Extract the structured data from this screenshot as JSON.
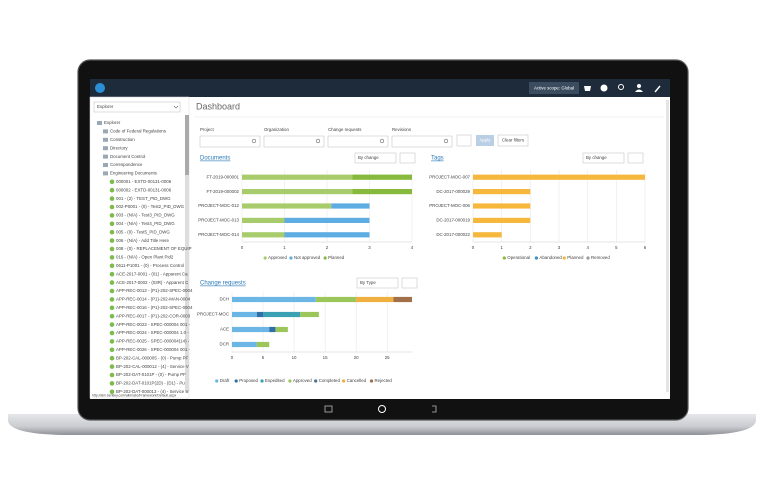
{
  "topbar": {
    "scope": "Active scope: Global"
  },
  "sidebar": {
    "dropdown": "Explorer",
    "root": "Explorer",
    "folders": [
      "Code of Federal Regulations",
      "Construction",
      "Directory",
      "Document Control",
      "Correspondence",
      "Engineering Documents"
    ],
    "documents": [
      "000001 - EXTD-00131-0006",
      "000002 - EXTD-00131-0006",
      "001 - (2) - TEST_PID_DWG",
      "002-P0001 - (0) - Test2_PID_DWG",
      "003 - (N/A) - Test3_PID_DWG",
      "004 - (N/A) - Test4_PID_DWG",
      "005 - (0) - Test5_PID_DWG",
      "006 - (N/A) - Add Title Here",
      "008 - (0) - REPLACEMENT OF EQUIP",
      "016 - (N/A) - Open Plant Pid2",
      "0611-P1001 - (0) - Process Control",
      "ACE-2017-0001 - (01) - Apparent Ca",
      "ACE-2017-0002 - (03R) - Apparent C",
      "APP-REC-0013 - (P1)-202-SPEC-0004",
      "APP-REC-0014 - (P1)-202-MAN-0004",
      "APP-REC-0016 - (P1)-202-SPEC-0004",
      "APP-REC-0017 - (P1)-202-COR-0003",
      "APP-REC-0023 - SPEC-000004 001 -",
      "APP-REC-0024 - SPEC-000004 1.0 -",
      "APP-REC-0025 - SPEC-000004(14) -",
      "APP-REC-0026 - SPEC-000004 001 -",
      "BP-202-CAL-000005 - (0) - Pump PF",
      "BP-202-CAL-000012 - (4) - Service V",
      "BP-202-DAT-0101P - (0) - Pump PF",
      "BP-202-DAT-0101P(2D) - (D1) - Pu",
      "BP-202-DAT-000013 - (4) - Service V"
    ],
    "status": "http://alm.bentley.com/alim/abc/Framework/Default.aspx"
  },
  "main": {
    "title": "Dashboard"
  },
  "filters": {
    "labels": [
      "Project",
      "Organization",
      "Change requests",
      "Revisions"
    ],
    "apply": "Apply",
    "clear": "Clear filters"
  },
  "chart_data": [
    {
      "type": "bar",
      "orientation": "horizontal",
      "stacked": true,
      "title": "Documents",
      "dropdown": "By change",
      "categories": [
        "FT-2019-000001",
        "FT-2019-000002",
        "PROJECT-MOC-012",
        "PROJECT-MOC-013",
        "PROJECT-MOC-014"
      ],
      "series": [
        {
          "name": "Approved",
          "color": "#a8cc6c",
          "values": [
            2.6,
            2.6,
            2.1,
            1,
            1
          ]
        },
        {
          "name": "Not approved",
          "color": "#5dade2",
          "values": [
            0,
            0,
            0.9,
            2,
            2
          ]
        },
        {
          "name": "Planned",
          "color": "#86b93c",
          "values": [
            1.4,
            1.4,
            0,
            0,
            0
          ]
        }
      ],
      "xlim": [
        0,
        4
      ],
      "xticks": [
        0,
        1,
        2,
        3,
        4
      ],
      "grid": true
    },
    {
      "type": "bar",
      "orientation": "horizontal",
      "stacked": true,
      "title": "Tags",
      "dropdown": "By change",
      "categories": [
        "PROJECT-MOC-007",
        "DC-2017-000029",
        "PROJECT-MOC-006",
        "DC-2017-000019",
        "DC-2017-000022"
      ],
      "series": [
        {
          "name": "Operational",
          "color": "#86b93c",
          "values": [
            0,
            0,
            0,
            0,
            0
          ]
        },
        {
          "name": "Abandoned",
          "color": "#3a8fc0",
          "values": [
            0,
            0,
            0,
            0,
            0
          ]
        },
        {
          "name": "Planned",
          "color": "#f5b83d",
          "values": [
            6,
            2,
            2,
            2,
            1
          ]
        },
        {
          "name": "Removed",
          "color": "#9a9a9a",
          "values": [
            0,
            0,
            0,
            0,
            0
          ]
        }
      ],
      "xlim": [
        0,
        6
      ],
      "xticks": [
        0,
        1,
        2,
        3,
        4,
        5,
        6
      ],
      "grid": true
    },
    {
      "type": "bar",
      "orientation": "horizontal",
      "stacked": true,
      "title": "Change requests",
      "dropdown": "By Type",
      "categories": [
        "DCH",
        "PROJECT-MOC",
        "ACE",
        "DCR"
      ],
      "series": [
        {
          "name": "Draft",
          "color": "#6cb6e6",
          "values": [
            13.5,
            4,
            6,
            4
          ]
        },
        {
          "name": "Proposed",
          "color": "#2f6fa8",
          "values": [
            0,
            1,
            1,
            0
          ]
        },
        {
          "name": "Expedited",
          "color": "#3aa0b4",
          "values": [
            0,
            6,
            0,
            0
          ]
        },
        {
          "name": "Approved",
          "color": "#9cc65a",
          "values": [
            6.5,
            3,
            2,
            2
          ]
        },
        {
          "name": "Completed",
          "color": "#4d6f8c",
          "values": [
            0,
            0,
            0,
            0
          ]
        },
        {
          "name": "Cancelled",
          "color": "#f0b040",
          "values": [
            6,
            0,
            0,
            0
          ]
        },
        {
          "name": "Rejected",
          "color": "#a0704a",
          "values": [
            3,
            0,
            0,
            0
          ]
        }
      ],
      "xlim": [
        0,
        29
      ],
      "xticks": [
        0,
        5,
        10,
        15,
        20,
        25
      ],
      "grid": true
    }
  ]
}
